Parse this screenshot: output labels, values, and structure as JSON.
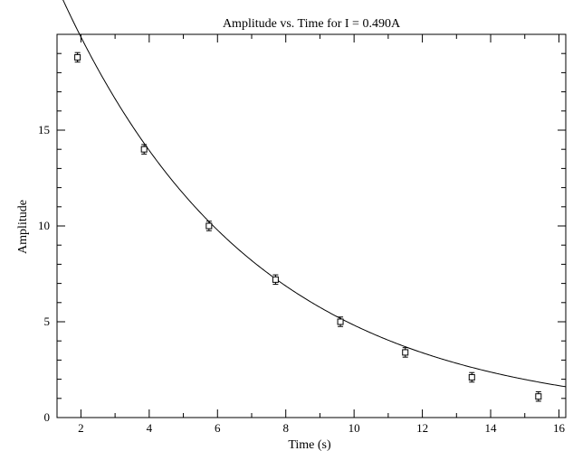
{
  "chart_data": {
    "type": "scatter",
    "title": "Amplitude vs. Time for I = 0.490A",
    "xlabel": "Time (s)",
    "ylabel": "Amplitude",
    "xlim": [
      1.3,
      16.2
    ],
    "ylim": [
      0,
      20
    ],
    "x_ticks": [
      2,
      4,
      6,
      8,
      10,
      12,
      14,
      16
    ],
    "x_tick_labels": [
      "2",
      "4",
      "6",
      "8",
      "10",
      "12",
      "14",
      "16"
    ],
    "y_ticks": [
      0,
      5,
      10,
      15
    ],
    "y_tick_labels": [
      "0",
      "5",
      "10",
      "15"
    ],
    "grid": false,
    "legend": "none",
    "series": [
      {
        "type": "scatter",
        "marker": "square",
        "x": [
          1.9,
          3.85,
          5.75,
          7.7,
          9.6,
          11.5,
          13.45,
          15.4
        ],
        "y": [
          18.8,
          14.0,
          10.0,
          7.2,
          5.0,
          3.4,
          2.1,
          1.1
        ],
        "y_error": [
          0.2,
          0.2,
          0.2,
          0.2,
          0.2,
          0.2,
          0.2,
          0.2
        ]
      },
      {
        "type": "line",
        "model": "exponential_decay",
        "amplitude": 28.3,
        "decay_rate": 0.177
      }
    ]
  }
}
